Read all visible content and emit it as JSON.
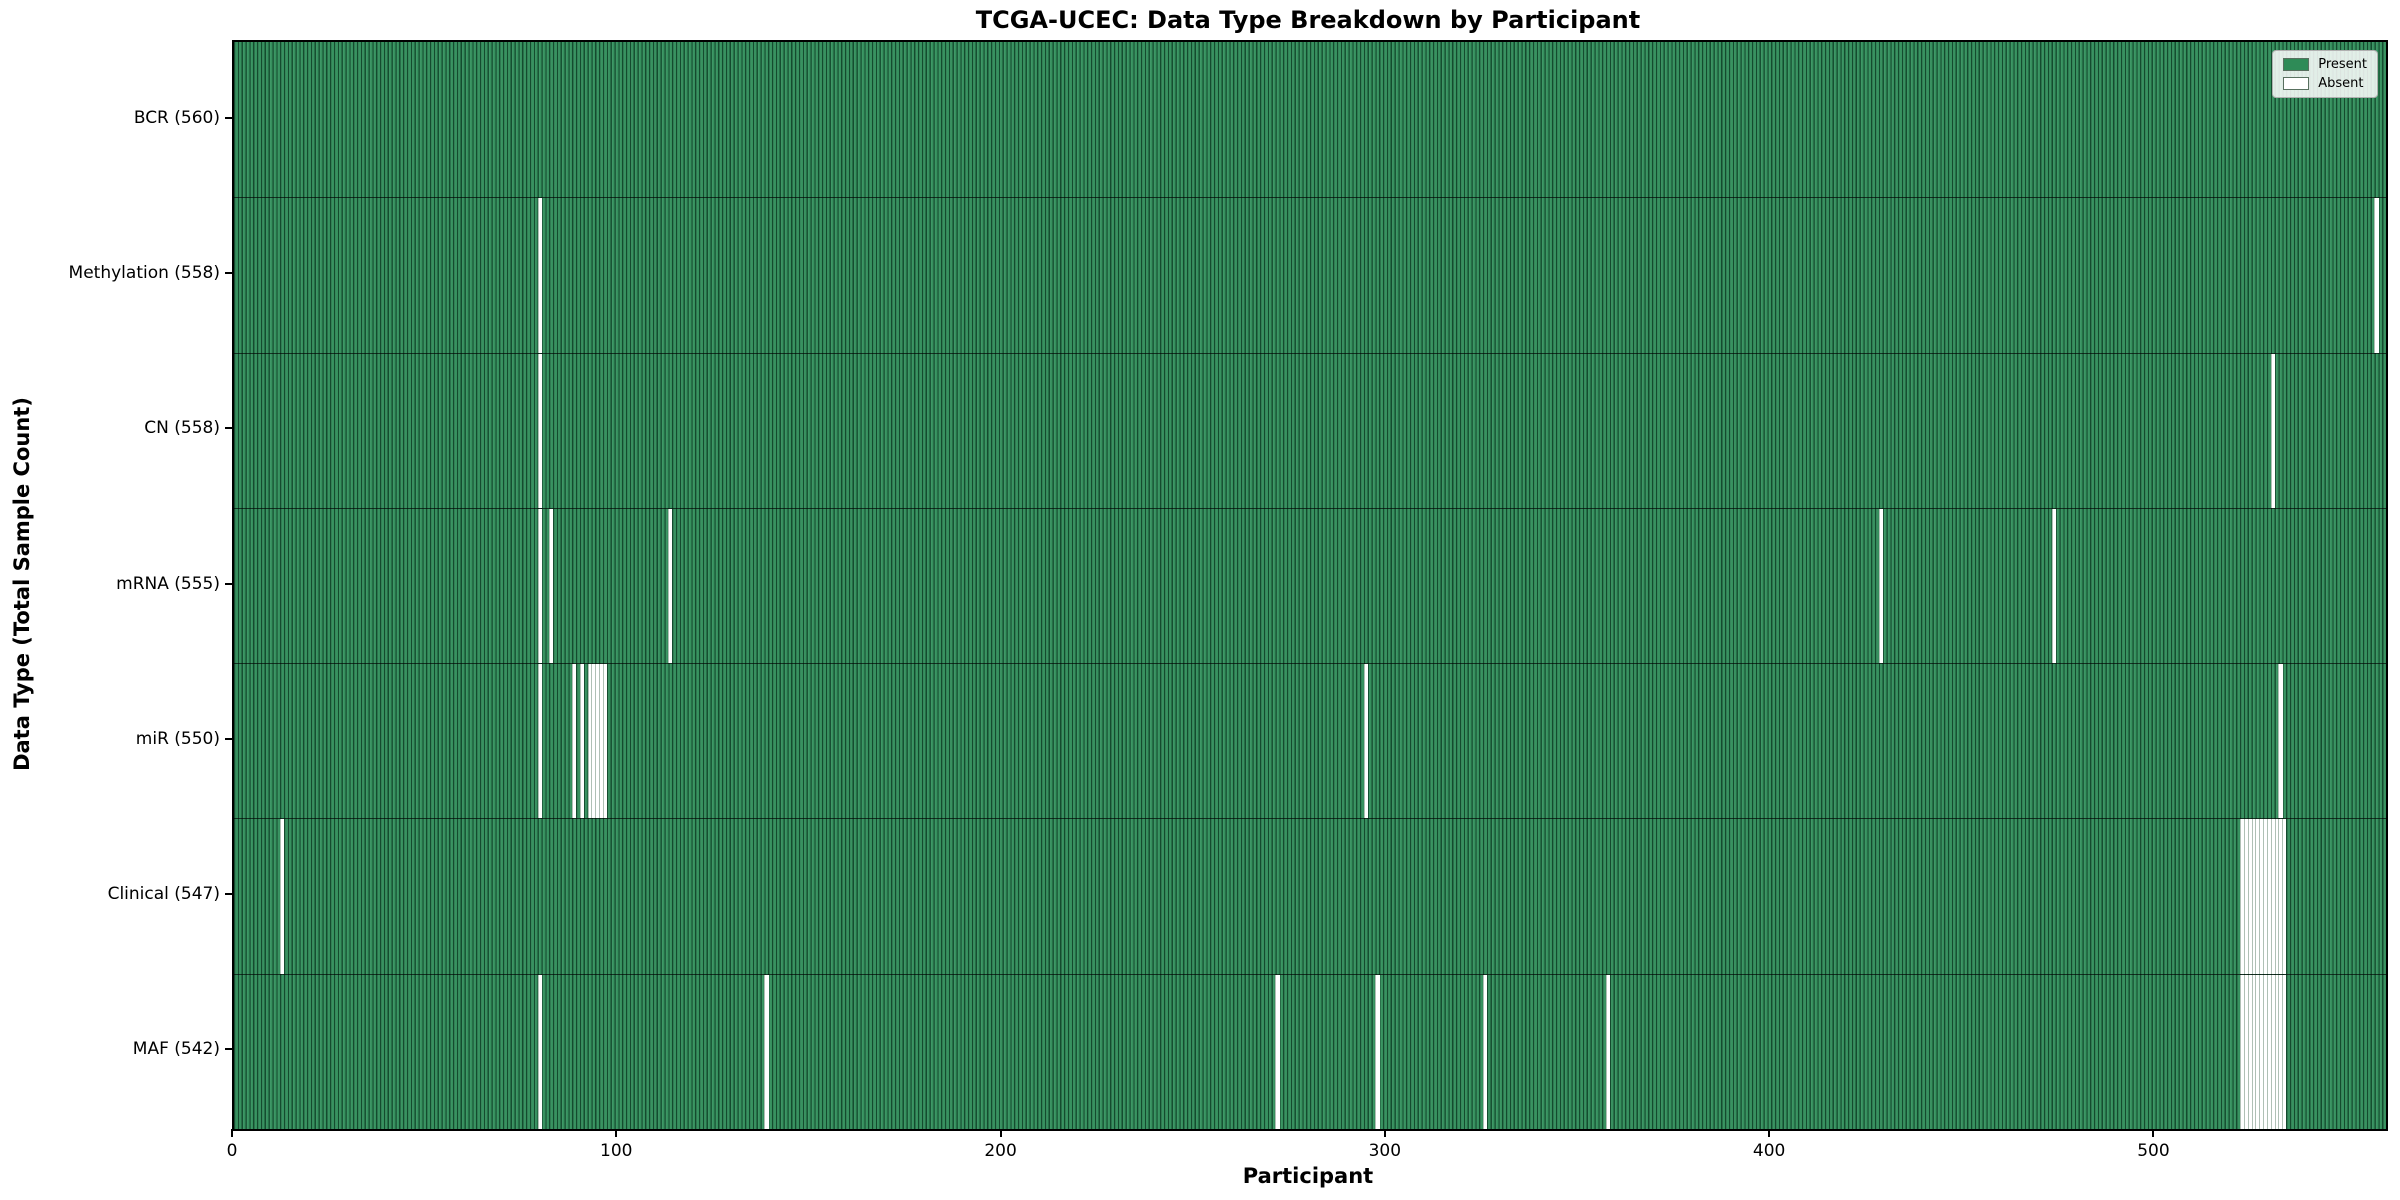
{
  "title": "TCGA-UCEC: Data Type Breakdown by Participant",
  "xlabel": "Participant",
  "ylabel": "Data Type (Total Sample Count)",
  "legend": {
    "present_label": "Present",
    "absent_label": "Absent"
  },
  "colors": {
    "present": "#2e8b57",
    "absent": "#ffffff",
    "bar_edge": "#14532f",
    "plot_border": "#000000"
  },
  "x_ticks": [
    0,
    100,
    200,
    300,
    400,
    500
  ],
  "n_participants": 560,
  "chart_data": {
    "type": "heatmap",
    "title": "TCGA-UCEC: Data Type Breakdown by Participant",
    "xlabel": "Participant",
    "ylabel": "Data Type (Total Sample Count)",
    "x_range": [
      0,
      560
    ],
    "x_tick_values": [
      0,
      100,
      200,
      300,
      400,
      500
    ],
    "legend": [
      "Present",
      "Absent"
    ],
    "legend_position": "upper right",
    "present_color": "#2e8b57",
    "absent_color": "#ffffff",
    "rows": [
      {
        "key": "bcr",
        "label": "BCR (560)",
        "data_type": "BCR",
        "total": 560,
        "absent_participants": []
      },
      {
        "key": "methylation",
        "label": "Methylation (558)",
        "data_type": "Methylation",
        "total": 558,
        "absent_participants": [
          79,
          557
        ]
      },
      {
        "key": "cn",
        "label": "CN (558)",
        "data_type": "CN",
        "total": 558,
        "absent_participants": [
          79,
          530
        ]
      },
      {
        "key": "mrna",
        "label": "mRNA (555)",
        "data_type": "mRNA",
        "total": 555,
        "absent_participants": [
          79,
          82,
          113,
          428,
          473
        ]
      },
      {
        "key": "mir",
        "label": "miR (550)",
        "data_type": "miR",
        "total": 550,
        "absent_participants": [
          79,
          88,
          90,
          92,
          93,
          94,
          95,
          96,
          294,
          532
        ]
      },
      {
        "key": "clinical",
        "label": "Clinical (547)",
        "data_type": "Clinical",
        "total": 547,
        "absent_participants": [
          12,
          522,
          523,
          524,
          525,
          526,
          527,
          528,
          529,
          530,
          531,
          532,
          533
        ]
      },
      {
        "key": "maf",
        "label": "MAF (542)",
        "data_type": "MAF",
        "total": 542,
        "absent_participants": [
          79,
          138,
          271,
          297,
          325,
          357,
          522,
          523,
          524,
          525,
          526,
          527,
          528,
          529,
          530,
          531,
          532,
          533
        ]
      }
    ]
  }
}
